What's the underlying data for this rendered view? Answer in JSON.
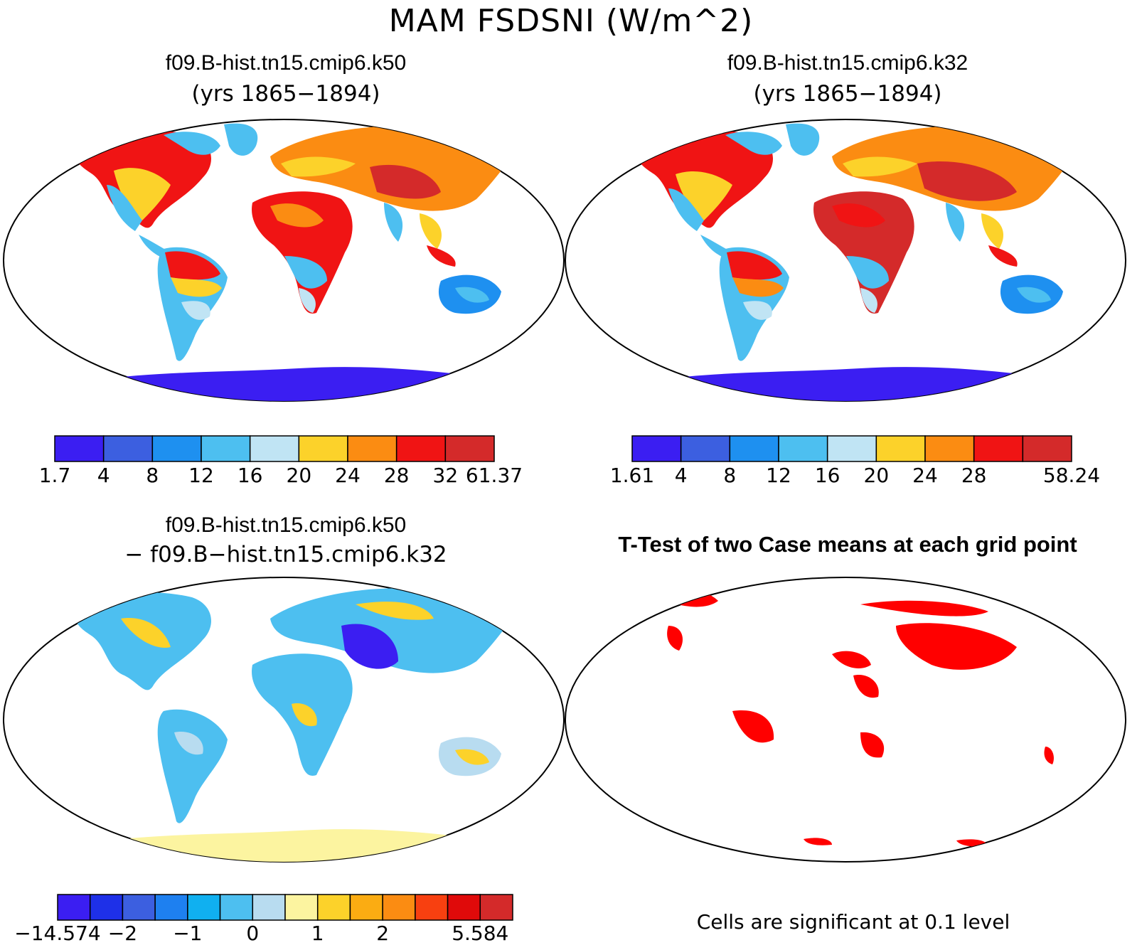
{
  "figure": {
    "title": "MAM FSDSNI (W/m^2)"
  },
  "panels": [
    {
      "id": "case-k50",
      "case_name": "f09.B-hist.tn15.cmip6.k50",
      "subtitle": "(yrs 1865−1894)",
      "field": "absolute"
    },
    {
      "id": "case-k32",
      "case_name": "f09.B-hist.tn15.cmip6.k32",
      "subtitle": "(yrs 1865−1894)",
      "field": "absolute"
    },
    {
      "id": "difference",
      "case_name": "f09.B-hist.tn15.cmip6.k50",
      "subtitle": "− f09.B−hist.tn15.cmip6.k32",
      "field": "difference"
    },
    {
      "id": "ttest",
      "title": "T-Test of two Case means at each grid point",
      "footnote": "Cells are significant at 0.1 level",
      "field": "significance"
    }
  ],
  "colorbars": {
    "k50": {
      "colors": [
        "#3b1ef2",
        "#3c5fe0",
        "#1e90f0",
        "#4dbff0",
        "#c0e4f4",
        "#fcd22a",
        "#fb8c12",
        "#f01414",
        "#d42a2a"
      ],
      "labels": [
        "1.7",
        "4",
        "8",
        "12",
        "16",
        "20",
        "24",
        "28",
        "32",
        "61.37"
      ]
    },
    "k32": {
      "colors": [
        "#3b1ef2",
        "#3c5fe0",
        "#1e90f0",
        "#4dbff0",
        "#c0e4f4",
        "#fcd22a",
        "#fb8c12",
        "#f01414",
        "#d42a2a"
      ],
      "labels": [
        "1.61",
        "4",
        "8",
        "12",
        "16",
        "20",
        "24",
        "28",
        "",
        "58.24"
      ]
    },
    "diff": {
      "colors": [
        "#3b1ef2",
        "#1e30e8",
        "#3c5fe0",
        "#1e80f0",
        "#10b0f0",
        "#4dbff0",
        "#b8dcf0",
        "#fcf4a0",
        "#fcd22a",
        "#fbac12",
        "#fb8c12",
        "#f84010",
        "#e00a0a",
        "#d42a2a"
      ],
      "labels": [
        "−14.574",
        "",
        "−2",
        "",
        "−1",
        "",
        "0",
        "",
        "1",
        "",
        "2",
        "",
        "",
        "5.584"
      ]
    }
  },
  "colors": {
    "significant": "#ff0000",
    "ocean": "#ffffff",
    "coast": "#000000"
  }
}
